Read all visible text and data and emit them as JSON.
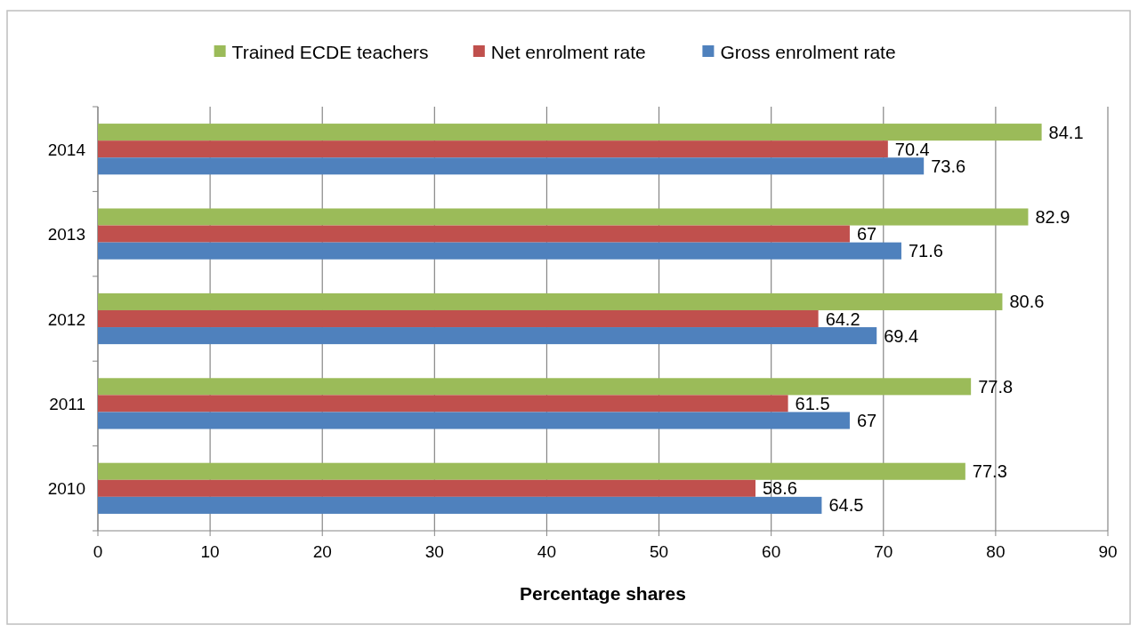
{
  "chart_data": {
    "type": "bar",
    "orientation": "horizontal",
    "xlabel": "Percentage shares",
    "categories": [
      "2014",
      "2013",
      "2012",
      "2011",
      "2010"
    ],
    "series": [
      {
        "name": "Trained ECDE teachers",
        "color": "#9bbb59",
        "values": [
          84.1,
          82.9,
          80.6,
          77.8,
          77.3
        ]
      },
      {
        "name": "Net enrolment rate",
        "color": "#c0504d",
        "values": [
          70.4,
          67,
          64.2,
          61.5,
          58.6
        ]
      },
      {
        "name": "Gross enrolment rate",
        "color": "#4f81bd",
        "values": [
          73.6,
          71.6,
          69.4,
          67,
          64.5
        ]
      }
    ],
    "xlim": [
      0,
      90
    ],
    "xticks": [
      0,
      10,
      20,
      30,
      40,
      50,
      60,
      70,
      80,
      90
    ],
    "grid": "x",
    "legend": "top",
    "data_labels": true
  }
}
